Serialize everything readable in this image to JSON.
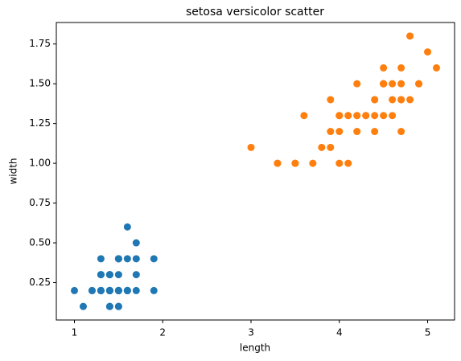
{
  "chart_data": {
    "type": "scatter",
    "title": "setosa versicolor scatter",
    "x_label": "length",
    "y_label": "width",
    "xlim": [
      0.795,
      5.305
    ],
    "ylim": [
      0.015,
      1.885
    ],
    "xticks": [
      1,
      2,
      3,
      4,
      5
    ],
    "yticks": [
      0.25,
      {
        "value": 0.5,
        "label": "0.50"
      },
      0.75,
      {
        "value": 1,
        "label": "1.00"
      },
      1.25,
      {
        "value": 1.5,
        "label": "1.50"
      },
      1.75
    ],
    "series": [
      {
        "color": "#1f77b4",
        "x": [
          1.4,
          1.4,
          1.3,
          1.5,
          1.4,
          1.7,
          1.4,
          1.5,
          1.4,
          1.5,
          1.5,
          1.6,
          1.4,
          1.1,
          1.2,
          1.5,
          1.3,
          1.4,
          1.7,
          1.5,
          1.7,
          1.5,
          1.0,
          1.7,
          1.9,
          1.6,
          1.6,
          1.5,
          1.4,
          1.6,
          1.6,
          1.5,
          1.5,
          1.4,
          1.5,
          1.2,
          1.3,
          1.4,
          1.3,
          1.5,
          1.3,
          1.3,
          1.3,
          1.6,
          1.9,
          1.4,
          1.6,
          1.4,
          1.5,
          1.4
        ],
        "values": [
          0.2,
          0.2,
          0.2,
          0.2,
          0.2,
          0.4,
          0.3,
          0.2,
          0.2,
          0.1,
          0.2,
          0.2,
          0.1,
          0.1,
          0.2,
          0.4,
          0.4,
          0.3,
          0.3,
          0.3,
          0.2,
          0.4,
          0.2,
          0.5,
          0.2,
          0.2,
          0.4,
          0.2,
          0.2,
          0.2,
          0.2,
          0.4,
          0.1,
          0.2,
          0.2,
          0.2,
          0.2,
          0.1,
          0.2,
          0.2,
          0.3,
          0.3,
          0.2,
          0.6,
          0.4,
          0.3,
          0.2,
          0.2,
          0.2,
          0.2
        ]
      },
      {
        "color": "#ff7f0e",
        "x": [
          4.7,
          4.5,
          4.9,
          4.0,
          4.6,
          4.5,
          4.7,
          3.3,
          4.6,
          3.9,
          3.5,
          4.2,
          4.0,
          4.7,
          3.6,
          4.4,
          4.5,
          4.1,
          4.5,
          3.9,
          4.8,
          4.0,
          4.9,
          4.7,
          4.3,
          4.4,
          4.8,
          5.0,
          4.5,
          3.5,
          3.8,
          3.7,
          3.9,
          5.1,
          4.5,
          4.5,
          4.7,
          4.4,
          4.1,
          4.0,
          4.4,
          4.6,
          4.0,
          3.3,
          4.2,
          4.2,
          4.2,
          4.3,
          3.0,
          4.1
        ],
        "values": [
          1.4,
          1.5,
          1.5,
          1.3,
          1.5,
          1.3,
          1.6,
          1.0,
          1.3,
          1.4,
          1.0,
          1.5,
          1.0,
          1.4,
          1.3,
          1.4,
          1.5,
          1.0,
          1.5,
          1.1,
          1.8,
          1.3,
          1.5,
          1.2,
          1.3,
          1.4,
          1.4,
          1.7,
          1.5,
          1.0,
          1.1,
          1.0,
          1.2,
          1.6,
          1.5,
          1.6,
          1.5,
          1.3,
          1.3,
          1.3,
          1.2,
          1.4,
          1.2,
          1.0,
          1.3,
          1.2,
          1.3,
          1.3,
          1.1,
          1.3
        ]
      }
    ]
  }
}
